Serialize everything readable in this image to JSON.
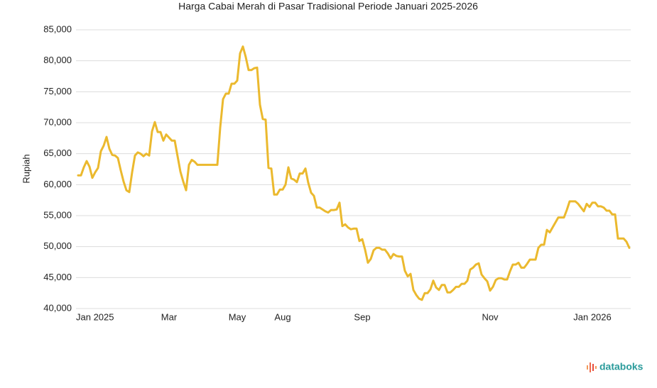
{
  "chart_data": {
    "type": "line",
    "title": "Harga Cabai Merah di Pasar Tradisional Periode Januari 2025-2026",
    "y_label": "Rupiah",
    "credit": "databoks",
    "color": "#ebb92e",
    "grid": true,
    "ylim": [
      40000,
      85000
    ],
    "yticks": [
      {
        "value": 40000,
        "label": "40,000"
      },
      {
        "value": 45000,
        "label": "45,000"
      },
      {
        "value": 50000,
        "label": "50,000"
      },
      {
        "value": 55000,
        "label": "55,000"
      },
      {
        "value": 60000,
        "label": "60,000"
      },
      {
        "value": 65000,
        "label": "65,000"
      },
      {
        "value": 70000,
        "label": "70,000"
      },
      {
        "value": 75000,
        "label": "75,000"
      },
      {
        "value": 80000,
        "label": "80,000"
      },
      {
        "value": 85000,
        "label": "85,000"
      }
    ],
    "categories": [
      "Jan 2025",
      null,
      null,
      null,
      null,
      null,
      null,
      null,
      null,
      null,
      null,
      null,
      null,
      null,
      null,
      null,
      null,
      null,
      null,
      null,
      null,
      null,
      null,
      null,
      null,
      null,
      null,
      null,
      null,
      null,
      null,
      null,
      "Mar",
      null,
      null,
      null,
      null,
      null,
      null,
      null,
      null,
      null,
      null,
      null,
      null,
      null,
      null,
      null,
      null,
      null,
      null,
      null,
      null,
      null,
      null,
      null,
      "May",
      null,
      null,
      null,
      null,
      null,
      null,
      null,
      null,
      null,
      null,
      null,
      null,
      null,
      null,
      null,
      "Aug",
      null,
      null,
      null,
      null,
      null,
      null,
      null,
      null,
      null,
      null,
      null,
      null,
      null,
      null,
      null,
      null,
      null,
      null,
      null,
      null,
      null,
      null,
      null,
      null,
      null,
      null,
      null,
      "Sep",
      null,
      null,
      null,
      null,
      null,
      null,
      null,
      null,
      null,
      null,
      null,
      null,
      null,
      null,
      null,
      null,
      null,
      null,
      null,
      null,
      null,
      null,
      null,
      null,
      null,
      null,
      null,
      null,
      null,
      null,
      null,
      null,
      null,
      null,
      null,
      null,
      null,
      null,
      null,
      null,
      null,
      null,
      null,
      null,
      "Nov",
      null,
      null,
      null,
      null,
      null,
      null,
      null,
      null,
      null,
      null,
      null,
      null,
      null,
      null,
      null,
      null,
      null,
      null,
      null,
      null,
      null,
      null,
      null,
      null,
      null,
      null,
      null,
      null,
      null,
      null,
      null,
      null,
      null,
      null,
      null,
      "Jan 2026",
      null,
      null,
      null,
      null,
      null,
      null,
      null,
      null,
      null,
      null,
      null,
      null,
      null
    ],
    "values": [
      61500,
      61500,
      62800,
      63800,
      62900,
      61100,
      62000,
      62700,
      65400,
      66300,
      67700,
      65800,
      64800,
      64700,
      64300,
      62300,
      60500,
      59100,
      58800,
      62000,
      64700,
      65200,
      65000,
      64600,
      65000,
      64700,
      68600,
      70100,
      68500,
      68500,
      67100,
      68100,
      67600,
      67100,
      67100,
      64600,
      62100,
      60500,
      59100,
      63200,
      64000,
      63700,
      63200,
      63200,
      63200,
      63200,
      63200,
      63200,
      63200,
      63200,
      69200,
      73800,
      74700,
      74700,
      76300,
      76300,
      76800,
      81200,
      82300,
      80600,
      78500,
      78500,
      78800,
      78900,
      72900,
      70600,
      70500,
      62700,
      62600,
      58400,
      58400,
      59200,
      59200,
      60000,
      62800,
      61000,
      60800,
      60400,
      61800,
      61800,
      62600,
      60300,
      58700,
      58200,
      56300,
      56300,
      56000,
      55700,
      55500,
      55900,
      55900,
      56000,
      57100,
      53300,
      53600,
      53100,
      52800,
      52900,
      52900,
      50900,
      51200,
      49500,
      47400,
      48000,
      49400,
      49800,
      49800,
      49500,
      49500,
      48900,
      48100,
      48800,
      48500,
      48400,
      48400,
      46100,
      45200,
      45600,
      43000,
      42200,
      41600,
      41400,
      42500,
      42500,
      43100,
      44500,
      43400,
      43000,
      43800,
      43800,
      42600,
      42600,
      43000,
      43500,
      43500,
      44000,
      44000,
      44500,
      46300,
      46600,
      47100,
      47300,
      45500,
      44900,
      44400,
      42900,
      43500,
      44600,
      44900,
      44900,
      44700,
      44700,
      46000,
      47100,
      47100,
      47400,
      46600,
      46600,
      47200,
      47900,
      47900,
      47900,
      49800,
      50300,
      50300,
      52700,
      52300,
      53100,
      53900,
      54700,
      54700,
      54700,
      55900,
      57300,
      57300,
      57300,
      56900,
      56300,
      55700,
      56900,
      56400,
      57100,
      57100,
      56500,
      56500,
      56300,
      55800,
      55800,
      55200,
      55200,
      51300,
      51300,
      51300,
      50800,
      49800
    ]
  }
}
